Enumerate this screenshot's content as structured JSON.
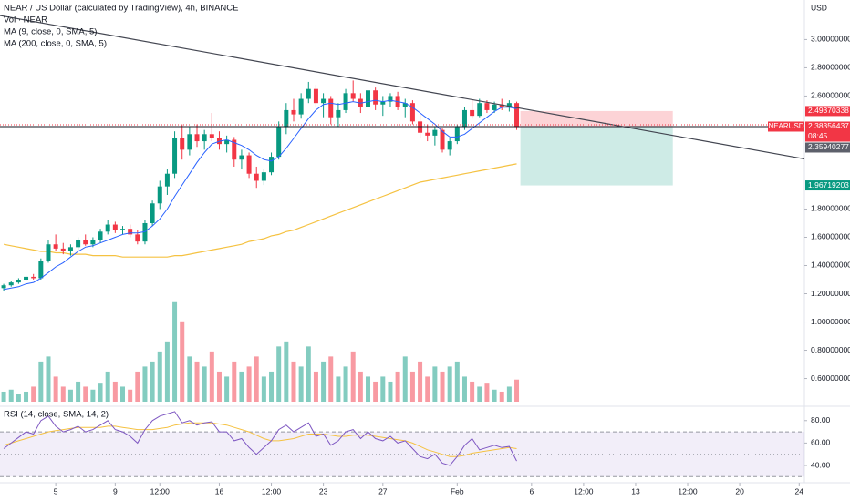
{
  "chart_data": {
    "type": "candlestick",
    "title": "NEAR / US Dollar (calculated by TradingView), 4h, BINANCE",
    "legend": [
      "Vol · NEAR",
      "MA (9, close, 0, SMA, 5)",
      "MA (200, close, 0, SMA, 5)"
    ],
    "rsi_title": "RSI (14, close, SMA, 14, 2)",
    "currency": "USD",
    "up_color": "#089981",
    "down_color": "#f23645",
    "xlim": [
      -0.5,
      107.7
    ],
    "xticks": [
      {
        "value": 7,
        "label": "5"
      },
      {
        "value": 15,
        "label": "9"
      },
      {
        "value": 21,
        "label": "12:00"
      },
      {
        "value": 29,
        "label": "16"
      },
      {
        "value": 36,
        "label": "12:00"
      },
      {
        "value": 43,
        "label": "23"
      },
      {
        "value": 51,
        "label": "27"
      },
      {
        "value": 61,
        "label": "Feb"
      },
      {
        "value": 71,
        "label": "6"
      },
      {
        "value": 78,
        "label": "12:00"
      },
      {
        "value": 85,
        "label": "13"
      },
      {
        "value": 92,
        "label": "12:00"
      },
      {
        "value": 99,
        "label": "20"
      },
      {
        "value": 107,
        "label": "24"
      }
    ],
    "ylim": [
      0.41,
      3.28
    ],
    "yticks": [
      {
        "value": 3.0,
        "label": "3.00000000"
      },
      {
        "value": 2.8,
        "label": "2.80000000"
      },
      {
        "value": 2.6,
        "label": "2.60000000"
      },
      {
        "value": 1.8,
        "label": "1.80000000"
      },
      {
        "value": 1.6,
        "label": "1.60000000"
      },
      {
        "value": 1.4,
        "label": "1.40000000"
      },
      {
        "value": 1.2,
        "label": "1.20000000"
      },
      {
        "value": 1.0,
        "label": "1.00000000"
      },
      {
        "value": 0.8,
        "label": "0.80000000"
      },
      {
        "value": 0.6,
        "label": "0.60000000"
      }
    ],
    "candles": [
      [
        1.24,
        1.27,
        1.22,
        1.26
      ],
      [
        1.26,
        1.29,
        1.25,
        1.28
      ],
      [
        1.28,
        1.31,
        1.27,
        1.3
      ],
      [
        1.3,
        1.33,
        1.29,
        1.32
      ],
      [
        1.32,
        1.34,
        1.3,
        1.31
      ],
      [
        1.31,
        1.45,
        1.3,
        1.43
      ],
      [
        1.43,
        1.58,
        1.42,
        1.55
      ],
      [
        1.55,
        1.62,
        1.5,
        1.52
      ],
      [
        1.52,
        1.56,
        1.48,
        1.5
      ],
      [
        1.5,
        1.55,
        1.47,
        1.53
      ],
      [
        1.53,
        1.6,
        1.51,
        1.58
      ],
      [
        1.58,
        1.62,
        1.54,
        1.55
      ],
      [
        1.55,
        1.6,
        1.53,
        1.58
      ],
      [
        1.58,
        1.66,
        1.56,
        1.64
      ],
      [
        1.64,
        1.72,
        1.62,
        1.69
      ],
      [
        1.69,
        1.71,
        1.63,
        1.65
      ],
      [
        1.65,
        1.68,
        1.62,
        1.66
      ],
      [
        1.66,
        1.69,
        1.6,
        1.62
      ],
      [
        1.62,
        1.65,
        1.55,
        1.57
      ],
      [
        1.57,
        1.72,
        1.55,
        1.7
      ],
      [
        1.7,
        1.86,
        1.68,
        1.84
      ],
      [
        1.84,
        2.0,
        1.8,
        1.96
      ],
      [
        1.96,
        2.08,
        1.9,
        2.05
      ],
      [
        2.05,
        2.35,
        2.02,
        2.3
      ],
      [
        2.3,
        2.4,
        2.15,
        2.22
      ],
      [
        2.22,
        2.38,
        2.18,
        2.33
      ],
      [
        2.33,
        2.4,
        2.24,
        2.28
      ],
      [
        2.28,
        2.36,
        2.22,
        2.33
      ],
      [
        2.33,
        2.48,
        2.28,
        2.3
      ],
      [
        2.3,
        2.35,
        2.22,
        2.26
      ],
      [
        2.26,
        2.32,
        2.2,
        2.29
      ],
      [
        2.29,
        2.31,
        2.1,
        2.15
      ],
      [
        2.15,
        2.22,
        2.08,
        2.18
      ],
      [
        2.18,
        2.2,
        2.02,
        2.05
      ],
      [
        2.05,
        2.1,
        1.95,
        2.0
      ],
      [
        2.0,
        2.08,
        1.97,
        2.06
      ],
      [
        2.06,
        2.2,
        2.04,
        2.17
      ],
      [
        2.17,
        2.42,
        2.15,
        2.38
      ],
      [
        2.38,
        2.55,
        2.33,
        2.5
      ],
      [
        2.5,
        2.58,
        2.42,
        2.47
      ],
      [
        2.47,
        2.62,
        2.44,
        2.58
      ],
      [
        2.58,
        2.7,
        2.55,
        2.65
      ],
      [
        2.65,
        2.68,
        2.52,
        2.55
      ],
      [
        2.55,
        2.62,
        2.45,
        2.58
      ],
      [
        2.58,
        2.6,
        2.4,
        2.45
      ],
      [
        2.45,
        2.55,
        2.38,
        2.5
      ],
      [
        2.5,
        2.65,
        2.48,
        2.62
      ],
      [
        2.62,
        2.71,
        2.56,
        2.58
      ],
      [
        2.58,
        2.62,
        2.48,
        2.52
      ],
      [
        2.52,
        2.68,
        2.5,
        2.64
      ],
      [
        2.64,
        2.66,
        2.5,
        2.54
      ],
      [
        2.54,
        2.6,
        2.46,
        2.56
      ],
      [
        2.56,
        2.62,
        2.52,
        2.6
      ],
      [
        2.6,
        2.63,
        2.5,
        2.52
      ],
      [
        2.52,
        2.58,
        2.45,
        2.55
      ],
      [
        2.55,
        2.57,
        2.4,
        2.42
      ],
      [
        2.42,
        2.47,
        2.3,
        2.34
      ],
      [
        2.34,
        2.4,
        2.28,
        2.32
      ],
      [
        2.32,
        2.38,
        2.25,
        2.36
      ],
      [
        2.36,
        2.37,
        2.2,
        2.22
      ],
      [
        2.22,
        2.3,
        2.18,
        2.28
      ],
      [
        2.28,
        2.4,
        2.26,
        2.38
      ],
      [
        2.38,
        2.52,
        2.36,
        2.5
      ],
      [
        2.5,
        2.57,
        2.44,
        2.46
      ],
      [
        2.46,
        2.58,
        2.45,
        2.55
      ],
      [
        2.55,
        2.57,
        2.48,
        2.5
      ],
      [
        2.5,
        2.56,
        2.48,
        2.54
      ],
      [
        2.54,
        2.58,
        2.5,
        2.52
      ],
      [
        2.52,
        2.57,
        2.49,
        2.55
      ],
      [
        2.55,
        2.56,
        2.36,
        2.38
      ]
    ],
    "ma9": {
      "color": "#2962ff",
      "values": [
        1.23,
        1.24,
        1.25,
        1.27,
        1.28,
        1.31,
        1.35,
        1.39,
        1.42,
        1.46,
        1.5,
        1.53,
        1.54,
        1.56,
        1.58,
        1.6,
        1.62,
        1.63,
        1.63,
        1.64,
        1.68,
        1.73,
        1.8,
        1.89,
        1.97,
        2.05,
        2.13,
        2.2,
        2.26,
        2.28,
        2.29,
        2.27,
        2.25,
        2.22,
        2.18,
        2.15,
        2.14,
        2.17,
        2.23,
        2.3,
        2.37,
        2.44,
        2.5,
        2.54,
        2.55,
        2.54,
        2.55,
        2.56,
        2.55,
        2.56,
        2.57,
        2.56,
        2.57,
        2.56,
        2.55,
        2.52,
        2.48,
        2.44,
        2.4,
        2.35,
        2.31,
        2.31,
        2.33,
        2.37,
        2.41,
        2.45,
        2.49,
        2.52,
        2.52,
        2.51
      ]
    },
    "ma200": {
      "color": "#f5c242",
      "values": [
        1.55,
        1.54,
        1.53,
        1.52,
        1.51,
        1.5,
        1.5,
        1.49,
        1.49,
        1.48,
        1.48,
        1.48,
        1.47,
        1.47,
        1.47,
        1.47,
        1.46,
        1.46,
        1.46,
        1.46,
        1.46,
        1.46,
        1.46,
        1.47,
        1.47,
        1.48,
        1.49,
        1.5,
        1.51,
        1.52,
        1.53,
        1.54,
        1.55,
        1.57,
        1.58,
        1.59,
        1.61,
        1.62,
        1.64,
        1.65,
        1.67,
        1.69,
        1.71,
        1.73,
        1.75,
        1.77,
        1.79,
        1.81,
        1.83,
        1.85,
        1.87,
        1.89,
        1.91,
        1.93,
        1.95,
        1.97,
        1.99,
        2.0,
        2.01,
        2.02,
        2.03,
        2.04,
        2.05,
        2.06,
        2.07,
        2.08,
        2.09,
        2.1,
        2.11,
        2.12
      ]
    },
    "volume_lim": [
      0,
      400
    ],
    "volume": [
      10,
      12,
      8,
      10,
      15,
      40,
      45,
      25,
      15,
      12,
      20,
      15,
      12,
      18,
      30,
      20,
      15,
      12,
      30,
      35,
      40,
      50,
      60,
      100,
      80,
      45,
      40,
      35,
      50,
      30,
      25,
      40,
      30,
      35,
      45,
      25,
      30,
      55,
      60,
      40,
      35,
      55,
      30,
      40,
      45,
      25,
      35,
      50,
      30,
      25,
      20,
      25,
      20,
      30,
      45,
      30,
      40,
      25,
      35,
      30,
      35,
      40,
      25,
      20,
      15,
      18,
      12,
      10,
      15,
      22
    ],
    "rsi_ylim": [
      27,
      92
    ],
    "rsi_yticks": [
      {
        "value": 80,
        "label": "80.00"
      },
      {
        "value": 60,
        "label": "60.00"
      },
      {
        "value": 40,
        "label": "40.00"
      }
    ],
    "rsi_bands": [
      70,
      50,
      30
    ],
    "rsi": {
      "color": "#7e57c2",
      "values": [
        55,
        60,
        65,
        70,
        68,
        80,
        84,
        75,
        70,
        72,
        75,
        70,
        72,
        76,
        80,
        72,
        70,
        66,
        60,
        72,
        80,
        84,
        86,
        88,
        78,
        80,
        76,
        78,
        79,
        70,
        70,
        62,
        64,
        56,
        50,
        56,
        62,
        72,
        76,
        70,
        74,
        78,
        66,
        68,
        58,
        62,
        70,
        72,
        64,
        70,
        64,
        62,
        66,
        60,
        62,
        55,
        48,
        46,
        50,
        42,
        40,
        48,
        58,
        64,
        54,
        56,
        58,
        56,
        57,
        44
      ]
    },
    "rsi_ma": {
      "color": "#f5c242",
      "values": [
        58,
        60,
        62,
        64,
        66,
        68,
        70,
        71,
        72,
        73,
        74,
        74,
        74,
        74,
        75,
        75,
        74,
        73,
        72,
        72,
        72,
        73,
        74,
        76,
        77,
        78,
        78,
        78,
        78,
        77,
        76,
        74,
        72,
        70,
        67,
        64,
        62,
        62,
        63,
        64,
        66,
        68,
        68,
        68,
        67,
        66,
        66,
        67,
        67,
        67,
        66,
        65,
        64,
        63,
        62,
        60,
        57,
        54,
        52,
        50,
        48,
        48,
        49,
        51,
        52,
        53,
        54,
        55,
        56,
        55
      ]
    },
    "trendline": {
      "x": [
        -0.5,
        107.7
      ],
      "y": [
        3.17,
        2.155
      ]
    },
    "hline": 2.3836,
    "position": {
      "x": [
        69.5,
        90
      ],
      "entry": 2.3836,
      "stop": 2.4937,
      "target": 1.9672
    },
    "price_tags": [
      {
        "value": 2.4937,
        "label": "2.49370338",
        "color": "#f23645"
      },
      {
        "value": 2.3836,
        "label": "2.38356437",
        "color": "#f23645",
        "symbol": "NEARUSD",
        "countdown": "08:45"
      },
      {
        "value": 2.3594,
        "label": "2.35940277",
        "color": "#5d606b"
      },
      {
        "value": 1.9672,
        "label": "1.96719203",
        "color": "#089981"
      }
    ]
  }
}
